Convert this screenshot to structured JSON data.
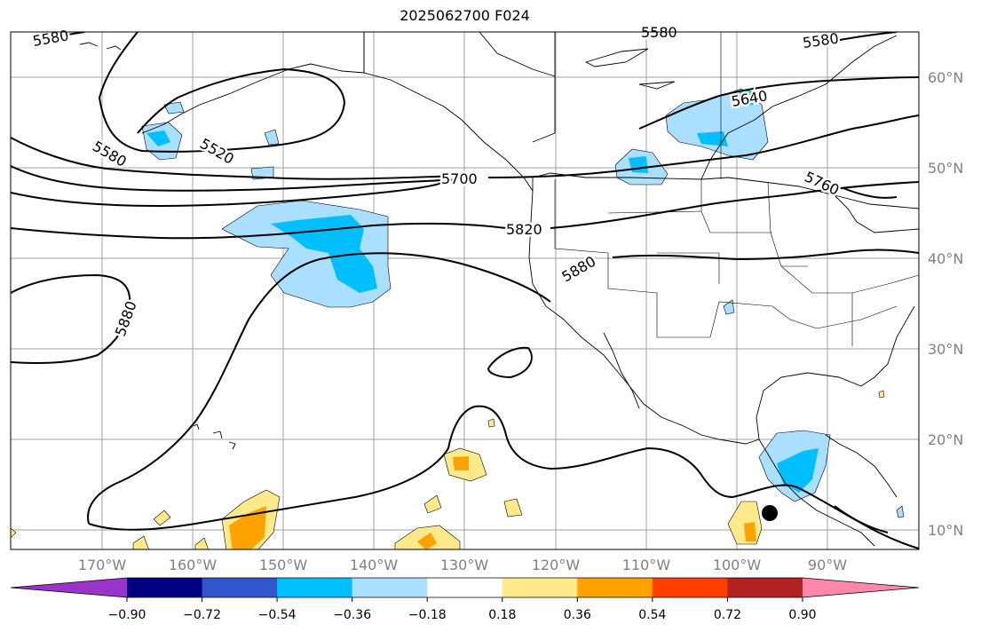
{
  "title": "2025062700 F024",
  "map": {
    "lat_labels": [
      "60°N",
      "50°N",
      "40°N",
      "30°N",
      "20°N",
      "10°N"
    ],
    "lon_labels": [
      "170°W",
      "160°W",
      "150°W",
      "140°W",
      "130°W",
      "120°W",
      "110°W",
      "100°W",
      "90°W"
    ],
    "contour_labels": [
      "5580",
      "5520",
      "5580",
      "5580",
      "5640",
      "5580",
      "5700",
      "5760",
      "5820",
      "5880",
      "5880"
    ],
    "contour_color": "#000000",
    "marker": "storm-center-dot"
  },
  "colorbar": {
    "colors": [
      "#9933cc",
      "#000080",
      "#3355cc",
      "#00bfff",
      "#aadfff",
      "#ffffff",
      "#ffe98a",
      "#ffa200",
      "#ff3f00",
      "#b22222",
      "#ff88aa"
    ],
    "tick_labels": [
      "−0.90",
      "−0.72",
      "−0.54",
      "−0.36",
      "−0.18",
      "0.18",
      "0.36",
      "0.54",
      "0.72",
      "0.90"
    ]
  }
}
